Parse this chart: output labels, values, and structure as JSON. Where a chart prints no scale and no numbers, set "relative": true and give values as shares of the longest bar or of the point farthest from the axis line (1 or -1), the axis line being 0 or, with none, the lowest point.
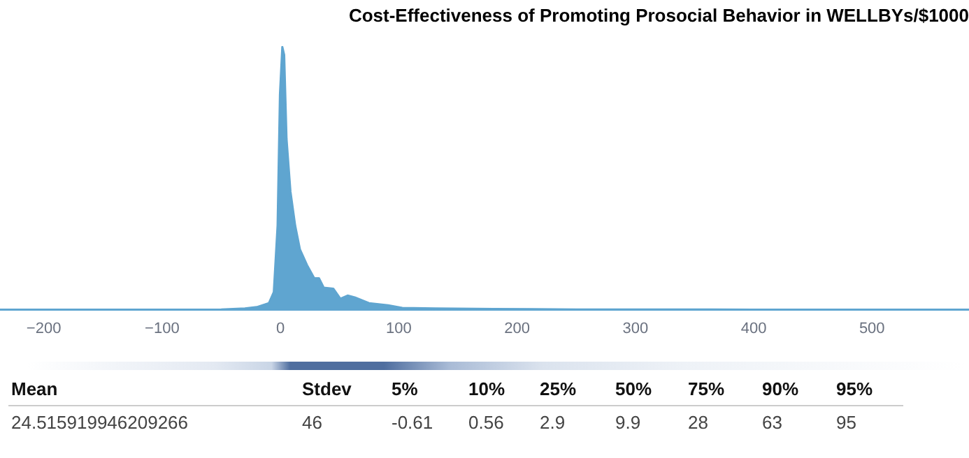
{
  "chart_data": [
    {
      "type": "area",
      "title": "Cost-Effectiveness of Promoting Prosocial Behavior in WELLBYs/$1000",
      "relative": true,
      "color": "#5fa5d0",
      "x": [
        -237,
        -100,
        -50,
        -30,
        -20,
        -9.7,
        -5.6,
        -2.4,
        -0.4,
        1.6,
        3.2,
        5.2,
        8.5,
        12.5,
        16.5,
        22.5,
        28.6,
        32.6,
        36.6,
        44.7,
        50.7,
        56.8,
        62.8,
        74.9,
        91,
        103,
        131,
        180,
        250,
        400,
        582
      ],
      "values": [
        0,
        0,
        0.001,
        0.005,
        0.01,
        0.025,
        0.067,
        0.32,
        0.82,
        1,
        0.97,
        0.65,
        0.45,
        0.32,
        0.23,
        0.17,
        0.12,
        0.12,
        0.084,
        0.08,
        0.042,
        0.054,
        0.047,
        0.025,
        0.017,
        0.007,
        0.005,
        0.003,
        0.001,
        0.0005,
        0
      ],
      "xlim": [
        -237,
        582
      ],
      "xticks": [
        {
          "value": -200,
          "label": "−200"
        },
        {
          "value": -100,
          "label": "−100"
        },
        0,
        100,
        200,
        300,
        400,
        500
      ]
    },
    {
      "type": "other",
      "categories": [
        "Mean",
        "Stdev",
        "5%",
        "10%",
        "25%",
        "50%",
        "75%",
        "90%",
        "95%"
      ],
      "values": [
        24.515919946209266,
        46,
        -0.61,
        0.56,
        2.9,
        9.9,
        28,
        63,
        95
      ],
      "data_labels": true
    }
  ]
}
